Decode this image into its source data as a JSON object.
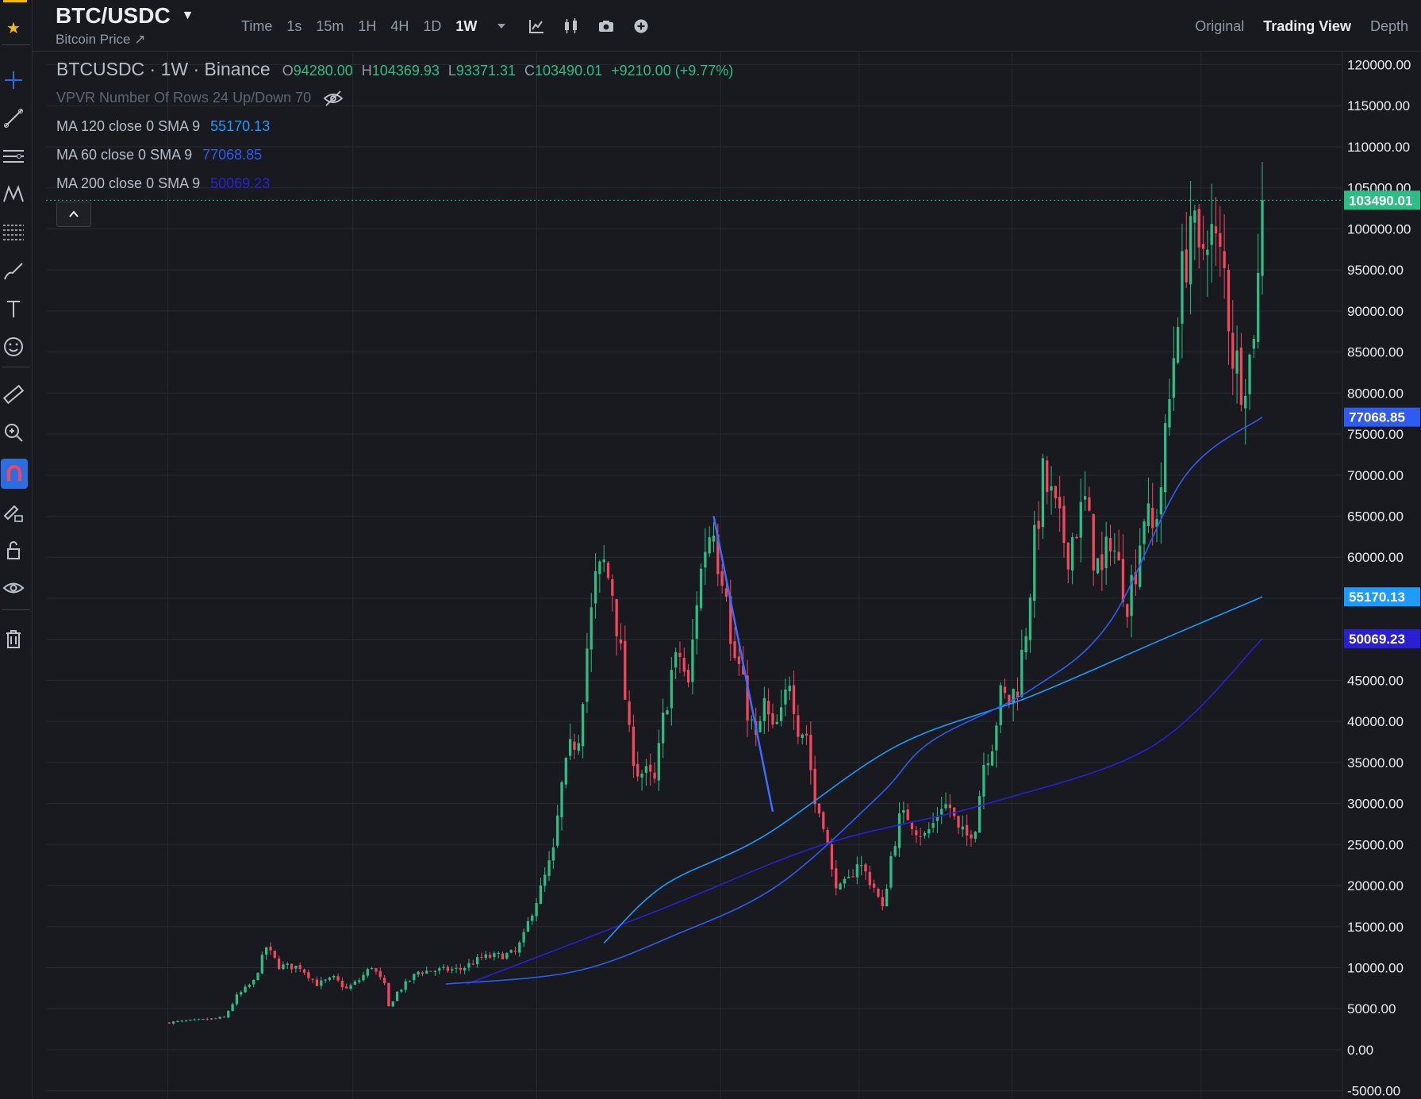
{
  "header": {
    "symbol": "BTC/USDC",
    "subtitle": "Bitcoin Price ↗",
    "intervals": [
      "Time",
      "1s",
      "15m",
      "1H",
      "4H",
      "1D",
      "1W"
    ],
    "active_interval": "1W",
    "views": [
      "Original",
      "Trading View",
      "Depth"
    ],
    "active_view": "Trading View"
  },
  "toolbar": {
    "icons": [
      "favorite-star-icon",
      "crosshair-icon",
      "trend-line-icon",
      "horizontal-lines-icon",
      "pattern-icon",
      "fib-icon",
      "brush-icon",
      "text-icon",
      "emoji-icon",
      "ruler-icon",
      "zoom-in-icon",
      "magnet-icon",
      "lock-edit-icon",
      "unlock-icon",
      "eye-icon",
      "trash-icon"
    ]
  },
  "legend": {
    "title": "BTCUSDC · 1W · Binance",
    "o_label": "O",
    "o_value": "94280.00",
    "h_label": "H",
    "h_value": "104369.93",
    "l_label": "L",
    "l_value": "93371.31",
    "c_label": "C",
    "c_value": "103490.01",
    "change": "+9210.00 (+9.77%)",
    "vpvr": "VPVR Number Of Rows 24 Up/Down 70",
    "ma": [
      {
        "label": "MA 120 close 0 SMA 9",
        "value": "55170.13",
        "color": "#1e9bff"
      },
      {
        "label": "MA 60 close 0 SMA 9",
        "value": "77068.85",
        "color": "#2f5bf0"
      },
      {
        "label": "MA 200 close 0 SMA 9",
        "value": "50069.23",
        "color": "#2b1fd6"
      }
    ]
  },
  "colors": {
    "up": "#2ebd85",
    "down": "#f6465d",
    "background": "#181a20",
    "grid": "#262a31",
    "axis_text": "#eaecef",
    "trend_line": "#3c6dff"
  },
  "chart_data": {
    "type": "candlestick",
    "interval": "1W",
    "y_axis": {
      "ticks": [
        "120000.00",
        "115000.00",
        "110000.00",
        "105000.00",
        "100000.00",
        "95000.00",
        "90000.00",
        "85000.00",
        "80000.00",
        "75000.00",
        "70000.00",
        "65000.00",
        "60000.00",
        "55000.00",
        "50000.00",
        "45000.00",
        "40000.00",
        "35000.00",
        "30000.00",
        "25000.00",
        "20000.00",
        "15000.00",
        "10000.00",
        "5000.00",
        "0.00",
        "-5000.00"
      ],
      "range": [
        -6000,
        121500
      ]
    },
    "price_labels": [
      {
        "value": 103490.01,
        "text": "103490.01",
        "color": "#2ebd85"
      },
      {
        "value": 77068.85,
        "text": "77068.85",
        "color": "#2f5bf0"
      },
      {
        "value": 55170.13,
        "text": "55170.13",
        "color": "#1e9bff"
      },
      {
        "value": 50069.23,
        "text": "50069.23",
        "color": "#2b1fd6"
      }
    ],
    "last_close": 103490.01,
    "price_path": [
      [
        0,
        3300
      ],
      [
        8,
        3600
      ],
      [
        14,
        3900
      ],
      [
        17,
        6500
      ],
      [
        21,
        8300
      ],
      [
        24,
        12500
      ],
      [
        27,
        10200
      ],
      [
        32,
        10100
      ],
      [
        36,
        8000
      ],
      [
        40,
        8700
      ],
      [
        43,
        7400
      ],
      [
        46,
        8500
      ],
      [
        49,
        10200
      ],
      [
        52,
        7800
      ],
      [
        53,
        5200
      ],
      [
        55,
        7000
      ],
      [
        60,
        9500
      ],
      [
        65,
        9700
      ],
      [
        70,
        9800
      ],
      [
        75,
        11200
      ],
      [
        80,
        11500
      ],
      [
        83,
        11800
      ],
      [
        85,
        13800
      ],
      [
        87,
        17000
      ],
      [
        89,
        19500
      ],
      [
        92,
        24000
      ],
      [
        94,
        32000
      ],
      [
        96,
        36500
      ],
      [
        98,
        38500
      ],
      [
        100,
        49000
      ],
      [
        102,
        57000
      ],
      [
        104,
        59000
      ],
      [
        106,
        56000
      ],
      [
        108,
        48000
      ],
      [
        110,
        38000
      ],
      [
        112,
        34000
      ],
      [
        114,
        33500
      ],
      [
        116,
        32500
      ],
      [
        118,
        40000
      ],
      [
        120,
        46000
      ],
      [
        122,
        48000
      ],
      [
        124,
        44000
      ],
      [
        126,
        55000
      ],
      [
        128,
        61500
      ],
      [
        130,
        64500
      ],
      [
        131,
        60000
      ],
      [
        133,
        57000
      ],
      [
        134,
        49000
      ],
      [
        136,
        46500
      ],
      [
        138,
        41500
      ],
      [
        140,
        37500
      ],
      [
        142,
        42000
      ],
      [
        144,
        38500
      ],
      [
        146,
        40500
      ],
      [
        148,
        45500
      ],
      [
        150,
        39500
      ],
      [
        152,
        38500
      ],
      [
        154,
        30000
      ],
      [
        156,
        28000
      ],
      [
        158,
        21500
      ],
      [
        160,
        19500
      ],
      [
        162,
        20500
      ],
      [
        164,
        23000
      ],
      [
        166,
        21500
      ],
      [
        168,
        19800
      ],
      [
        170,
        17000
      ],
      [
        172,
        23500
      ],
      [
        174,
        28000
      ],
      [
        176,
        28500
      ],
      [
        178,
        27000
      ],
      [
        180,
        26000
      ],
      [
        182,
        27500
      ],
      [
        184,
        30000
      ],
      [
        186,
        29500
      ],
      [
        188,
        26500
      ],
      [
        190,
        26000
      ],
      [
        192,
        27500
      ],
      [
        194,
        35000
      ],
      [
        196,
        37500
      ],
      [
        198,
        43000
      ],
      [
        200,
        42500
      ],
      [
        202,
        44500
      ],
      [
        204,
        51500
      ],
      [
        206,
        61500
      ],
      [
        208,
        69500
      ],
      [
        210,
        67000
      ],
      [
        212,
        63500
      ],
      [
        214,
        61000
      ],
      [
        216,
        64000
      ],
      [
        218,
        66500
      ],
      [
        220,
        60500
      ],
      [
        222,
        57500
      ],
      [
        224,
        63000
      ],
      [
        226,
        58500
      ],
      [
        228,
        55000
      ],
      [
        230,
        59000
      ],
      [
        232,
        65500
      ],
      [
        234,
        63000
      ],
      [
        236,
        69000
      ],
      [
        238,
        79000
      ],
      [
        240,
        91000
      ],
      [
        242,
        97000
      ],
      [
        243,
        102000
      ],
      [
        245,
        95000
      ],
      [
        247,
        101000
      ],
      [
        249,
        97500
      ],
      [
        251,
        94500
      ],
      [
        253,
        85000
      ],
      [
        255,
        82000
      ],
      [
        257,
        84000
      ],
      [
        259,
        93500
      ],
      [
        260,
        103490
      ]
    ],
    "ma120": [
      [
        66,
        13000
      ],
      [
        75,
        20000
      ],
      [
        90,
        26000
      ],
      [
        110,
        37000
      ],
      [
        130,
        43000
      ],
      [
        150,
        50000
      ],
      [
        165,
        55170
      ]
    ],
    "ma60_curve": [
      [
        55,
        8000
      ],
      [
        80,
        9500
      ],
      [
        100,
        14000
      ],
      [
        120,
        20000
      ],
      [
        140,
        31000
      ],
      [
        150,
        37500
      ],
      [
        170,
        44000
      ],
      [
        185,
        52000
      ],
      [
        200,
        70000
      ],
      [
        215,
        77068
      ]
    ],
    "ma200_curve": [
      [
        55,
        8000
      ],
      [
        90,
        17000
      ],
      [
        120,
        25000
      ],
      [
        150,
        30000
      ],
      [
        180,
        37000
      ],
      [
        200,
        50069
      ]
    ],
    "trend_line": {
      "start": [
        130,
        65000
      ],
      "end": [
        144,
        29000
      ]
    }
  }
}
